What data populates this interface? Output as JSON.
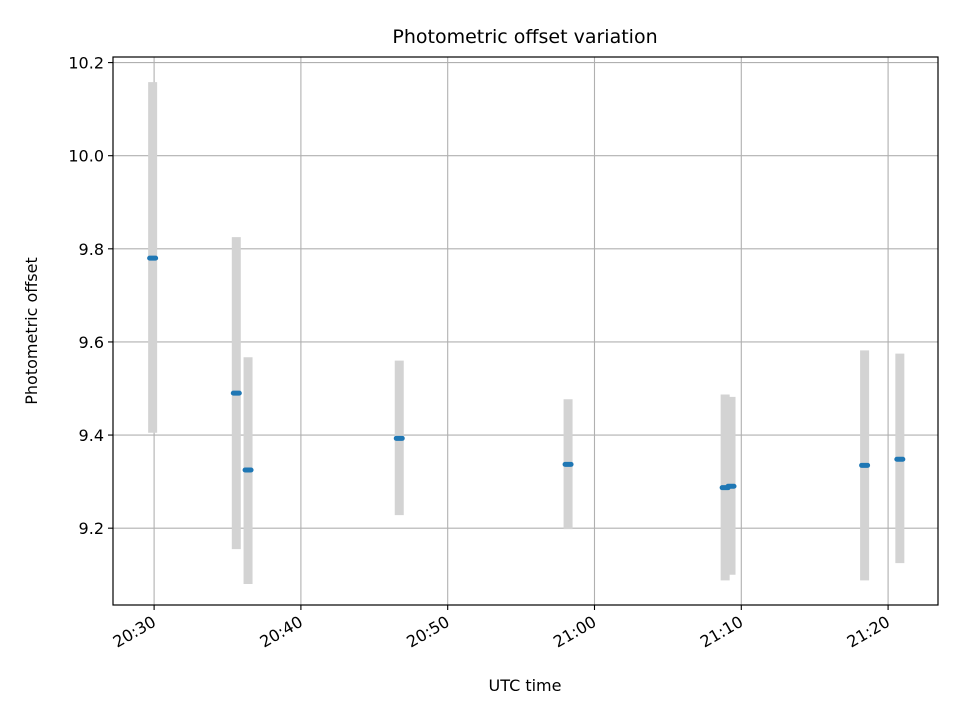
{
  "chart_data": {
    "type": "scatter",
    "title": "Photometric offset variation",
    "xlabel": "UTC time",
    "ylabel": "Photometric offset",
    "x_ticks": [
      "20:30",
      "20:40",
      "20:50",
      "21:00",
      "21:10",
      "21:20"
    ],
    "y_ticks": [
      "9.2",
      "9.4",
      "9.6",
      "9.8",
      "10.0",
      "10.2"
    ],
    "xlim": [
      "20:27:12",
      "21:23:24"
    ],
    "ylim": [
      9.035,
      10.212
    ],
    "grid": true,
    "series": [
      {
        "name": "",
        "x": [
          "20:29:54",
          "20:35:36",
          "20:36:24",
          "20:46:42",
          "20:58:12",
          "21:08:54",
          "21:09:18",
          "21:18:24",
          "21:20:48"
        ],
        "y": [
          9.78,
          9.49,
          9.325,
          9.393,
          9.337,
          9.287,
          9.29,
          9.335,
          9.348
        ],
        "error_low": [
          9.405,
          9.155,
          9.08,
          9.228,
          9.198,
          9.088,
          9.1,
          9.088,
          9.125
        ],
        "error_high": [
          10.158,
          9.825,
          9.567,
          9.56,
          9.477,
          9.487,
          9.482,
          9.582,
          9.575
        ],
        "marker_color": "#1f77b4",
        "errorbar_color": "#d3d3d3"
      }
    ]
  }
}
